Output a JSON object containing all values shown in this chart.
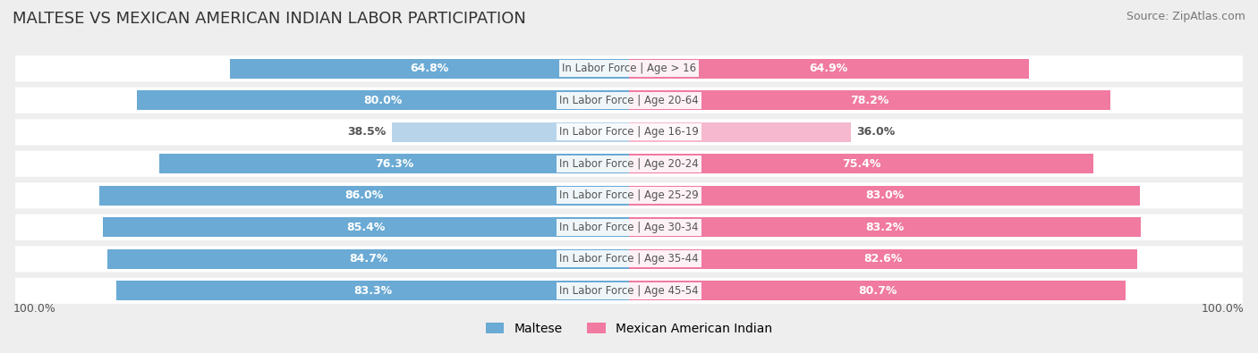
{
  "title": "MALTESE VS MEXICAN AMERICAN INDIAN LABOR PARTICIPATION",
  "source": "Source: ZipAtlas.com",
  "categories": [
    "In Labor Force | Age > 16",
    "In Labor Force | Age 20-64",
    "In Labor Force | Age 16-19",
    "In Labor Force | Age 20-24",
    "In Labor Force | Age 25-29",
    "In Labor Force | Age 30-34",
    "In Labor Force | Age 35-44",
    "In Labor Force | Age 45-54"
  ],
  "maltese_values": [
    64.8,
    80.0,
    38.5,
    76.3,
    86.0,
    85.4,
    84.7,
    83.3
  ],
  "mexican_values": [
    64.9,
    78.2,
    36.0,
    75.4,
    83.0,
    83.2,
    82.6,
    80.7
  ],
  "maltese_color_strong": "#6aaad4",
  "maltese_color_light": "#b8d4ea",
  "mexican_color_strong": "#f07aa0",
  "mexican_color_light": "#f5b8ce",
  "label_color_dark": "#555555",
  "label_color_white": "#ffffff",
  "bg_color": "#eeeeee",
  "row_bg_color": "#ffffff",
  "center_label_color": "#555555",
  "title_fontsize": 13,
  "source_fontsize": 9,
  "bar_label_fontsize": 9,
  "category_fontsize": 8.5,
  "legend_fontsize": 10,
  "footer_fontsize": 9
}
